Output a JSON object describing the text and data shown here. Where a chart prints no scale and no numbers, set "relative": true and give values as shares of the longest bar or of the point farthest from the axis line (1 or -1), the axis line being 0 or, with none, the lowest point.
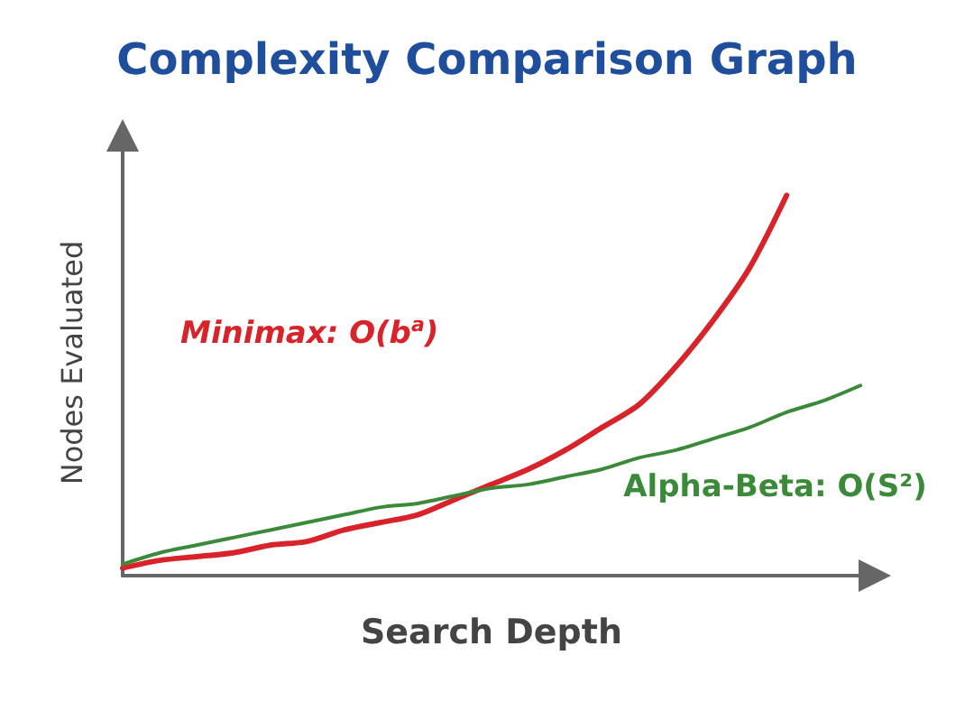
{
  "chart_data": {
    "type": "line",
    "title": "Complexity Comparison Graph",
    "xlabel": "Search Depth",
    "ylabel": "Nodes Evaluated",
    "relative": true,
    "grid": false,
    "legend": false,
    "marker": "none",
    "categories": [
      null,
      null,
      null,
      null,
      null,
      null,
      null,
      null,
      null,
      null,
      null,
      null,
      null,
      null,
      null,
      null,
      null,
      null,
      null,
      null,
      null
    ],
    "series": [
      {
        "name": "Minimax: O(b$^{a}$)",
        "color": "#d8232a",
        "values": [
          0.02,
          0.04,
          0.05,
          0.06,
          0.08,
          0.09,
          0.12,
          0.14,
          0.16,
          0.2,
          0.24,
          0.28,
          0.33,
          0.39,
          0.45,
          0.55,
          0.67,
          0.81,
          1.0,
          null,
          null
        ]
      },
      {
        "name": "Alpha-Beta: O(S²)",
        "color": "#3a8a3a",
        "values": [
          0.03,
          0.06,
          0.08,
          0.1,
          0.12,
          0.14,
          0.16,
          0.18,
          0.19,
          0.21,
          0.23,
          0.24,
          0.26,
          0.28,
          0.31,
          0.33,
          0.36,
          0.39,
          0.43,
          0.46,
          0.5
        ]
      }
    ]
  }
}
